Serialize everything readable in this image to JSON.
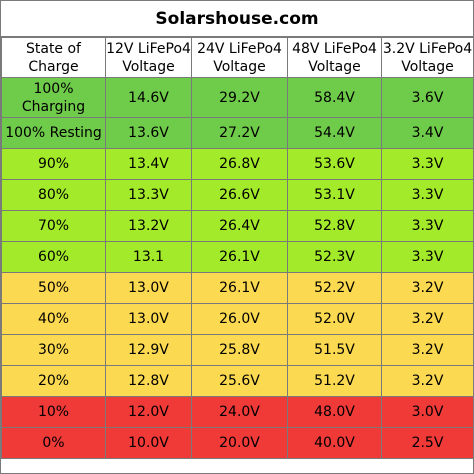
{
  "title": "Solarshouse.com",
  "headers": [
    [
      "State of",
      "Charge"
    ],
    [
      "12V LiFePo4",
      "Voltage"
    ],
    [
      "24V LiFePo4",
      "Voltage"
    ],
    [
      "48V LiFePo4",
      "Voltage"
    ],
    [
      "3.2V LiFePo4",
      "Voltage"
    ]
  ],
  "rows": [
    {
      "soc": "100% Charging",
      "v12": "14.6V",
      "v24": "29.2V",
      "v48": "58.4V",
      "v32": "3.6V",
      "color": "#6fcb4a"
    },
    {
      "soc": "100% Resting",
      "v12": "13.6V",
      "v24": "27.2V",
      "v48": "54.4V",
      "v32": "3.4V",
      "color": "#6fcb4a"
    },
    {
      "soc": "90%",
      "v12": "13.4V",
      "v24": "26.8V",
      "v48": "53.6V",
      "v32": "3.3V",
      "color": "#a3ea2a"
    },
    {
      "soc": "80%",
      "v12": "13.3V",
      "v24": "26.6V",
      "v48": "53.1V",
      "v32": "3.3V",
      "color": "#a3ea2a"
    },
    {
      "soc": "70%",
      "v12": "13.2V",
      "v24": "26.4V",
      "v48": "52.8V",
      "v32": "3.3V",
      "color": "#a3ea2a"
    },
    {
      "soc": "60%",
      "v12": "13.1",
      "v24": "26.1V",
      "v48": "52.3V",
      "v32": "3.3V",
      "color": "#a3ea2a"
    },
    {
      "soc": "50%",
      "v12": "13.0V",
      "v24": "26.1V",
      "v48": "52.2V",
      "v32": "3.2V",
      "color": "#fbd950"
    },
    {
      "soc": "40%",
      "v12": "13.0V",
      "v24": "26.0V",
      "v48": "52.0V",
      "v32": "3.2V",
      "color": "#fbd950"
    },
    {
      "soc": "30%",
      "v12": "12.9V",
      "v24": "25.8V",
      "v48": "51.5V",
      "v32": "3.2V",
      "color": "#fbd950"
    },
    {
      "soc": "20%",
      "v12": "12.8V",
      "v24": "25.6V",
      "v48": "51.2V",
      "v32": "3.2V",
      "color": "#fbd950"
    },
    {
      "soc": "10%",
      "v12": "12.0V",
      "v24": "24.0V",
      "v48": "48.0V",
      "v32": "3.0V",
      "color": "#ef3a38"
    },
    {
      "soc": "0%",
      "v12": "10.0V",
      "v24": "20.0V",
      "v48": "40.0V",
      "v32": "2.5V",
      "color": "#ef3a38"
    }
  ]
}
